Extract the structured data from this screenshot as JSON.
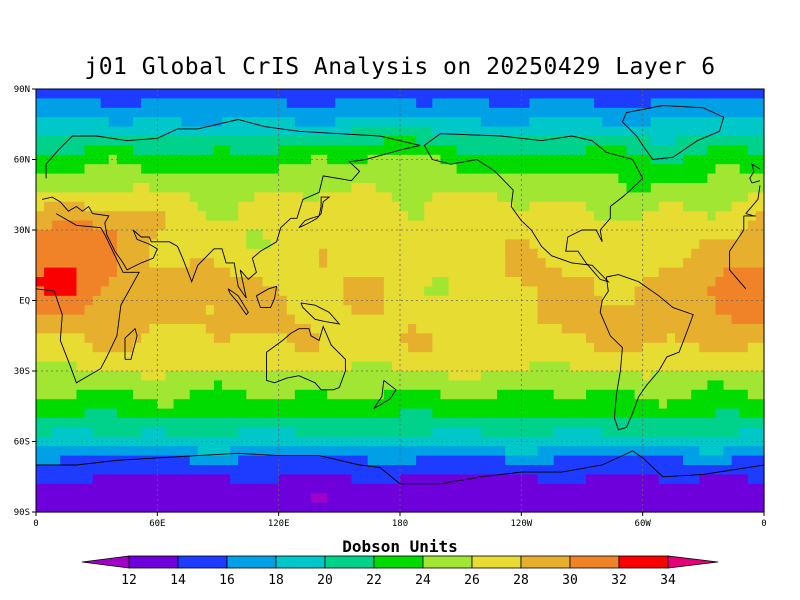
{
  "title": "j01 Global CrIS Analysis on 20250429 Layer 6",
  "map": {
    "projection": "cylindrical equidistant",
    "lon_range": [
      0,
      360
    ],
    "lat_range": [
      -90,
      90
    ],
    "lat_ticks": [
      {
        "lat": 90,
        "label": "90N"
      },
      {
        "lat": 60,
        "label": "60N"
      },
      {
        "lat": 30,
        "label": "30N"
      },
      {
        "lat": 0,
        "label": "EQ"
      },
      {
        "lat": -30,
        "label": "30S"
      },
      {
        "lat": -60,
        "label": "60S"
      },
      {
        "lat": -90,
        "label": "90S"
      }
    ],
    "lon_ticks": [
      {
        "lon": 0,
        "label": "0"
      },
      {
        "lon": 60,
        "label": "60E"
      },
      {
        "lon": 120,
        "label": "120E"
      },
      {
        "lon": 180,
        "label": "180"
      },
      {
        "lon": 240,
        "label": "120W"
      },
      {
        "lon": 300,
        "label": "60W"
      },
      {
        "lon": 360,
        "label": "0"
      }
    ],
    "grid": true
  },
  "colorbar": {
    "title": "Dobson Units",
    "levels": [
      12,
      14,
      16,
      18,
      20,
      22,
      24,
      26,
      28,
      30,
      32,
      34
    ],
    "colors": [
      "#a000c8",
      "#6e00dc",
      "#1e3cff",
      "#00a0e6",
      "#00c8c8",
      "#00d28c",
      "#00dc00",
      "#a0e632",
      "#e6dc32",
      "#e6af2d",
      "#f08228",
      "#fa0000",
      "#e6007a"
    ],
    "labels": [
      "12",
      "14",
      "16",
      "18",
      "20",
      "22",
      "24",
      "26",
      "28",
      "30",
      "32",
      "34"
    ]
  },
  "chart_data": {
    "type": "heatmap",
    "title": "j01 Global CrIS Analysis on 20250429 Layer 6",
    "units": "Dobson Units",
    "xlabel": "",
    "ylabel": "",
    "xlim": [
      0,
      360
    ],
    "ylim": [
      -90,
      90
    ],
    "zonal_profile": [
      {
        "lat": 90,
        "value": 15
      },
      {
        "lat": 80,
        "value": 17
      },
      {
        "lat": 70,
        "value": 20
      },
      {
        "lat": 60,
        "value": 23
      },
      {
        "lat": 50,
        "value": 25
      },
      {
        "lat": 40,
        "value": 26.5
      },
      {
        "lat": 30,
        "value": 27
      },
      {
        "lat": 20,
        "value": 27.5
      },
      {
        "lat": 10,
        "value": 28
      },
      {
        "lat": 0,
        "value": 28
      },
      {
        "lat": -10,
        "value": 28
      },
      {
        "lat": -20,
        "value": 27.5
      },
      {
        "lat": -30,
        "value": 26
      },
      {
        "lat": -40,
        "value": 24
      },
      {
        "lat": -50,
        "value": 22
      },
      {
        "lat": -60,
        "value": 19
      },
      {
        "lat": -70,
        "value": 15
      },
      {
        "lat": -80,
        "value": 13
      },
      {
        "lat": -90,
        "value": 12.5
      }
    ],
    "anomalies": [
      {
        "lon": 20,
        "lat": 8,
        "value": 30.5
      },
      {
        "lon": 12,
        "lat": 26,
        "value": 30
      },
      {
        "lon": 35,
        "lat": 30,
        "value": 29
      },
      {
        "lon": 350,
        "lat": 2,
        "value": 30.5
      },
      {
        "lon": 310,
        "lat": -8,
        "value": 29.5
      },
      {
        "lon": 65,
        "lat": 2,
        "value": 29
      },
      {
        "lon": 200,
        "lat": 4,
        "value": 26
      },
      {
        "lon": 95,
        "lat": 22,
        "value": 26.5
      },
      {
        "lon": 300,
        "lat": 45,
        "value": 24
      },
      {
        "lon": 170,
        "lat": 60,
        "value": 25
      }
    ]
  }
}
